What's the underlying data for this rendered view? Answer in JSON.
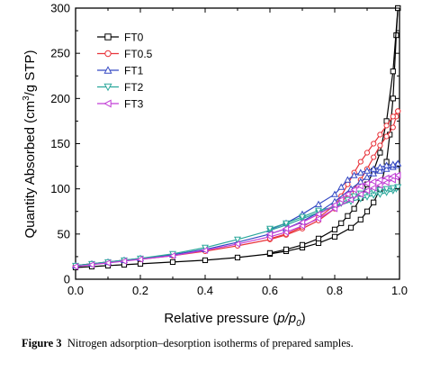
{
  "caption": {
    "label": "Figure 3",
    "text": "Nitrogen adsorption–desorption isotherms of prepared samples."
  },
  "chart_data": {
    "type": "line",
    "xlabel_main": "Relative pressure (",
    "xlabel_italic": "p/p",
    "xlabel_sub": "0",
    "xlabel_end": ")",
    "ylabel_pre": "Quantity Absorbed (cm",
    "ylabel_sup": "3",
    "ylabel_post": "/g STP)",
    "xlim": [
      0.0,
      1.0
    ],
    "ylim": [
      0,
      300
    ],
    "xticks": [
      "0.0",
      "0.2",
      "0.4",
      "0.6",
      "0.8",
      "1.0"
    ],
    "yticks": [
      "0",
      "50",
      "100",
      "150",
      "200",
      "250",
      "300"
    ],
    "legend_position": "top-left",
    "series": [
      {
        "name": "FT0",
        "color": "#000000",
        "marker": "square",
        "adsorption": [
          [
            0.0,
            13
          ],
          [
            0.05,
            14
          ],
          [
            0.1,
            15
          ],
          [
            0.15,
            16
          ],
          [
            0.2,
            17
          ],
          [
            0.3,
            19
          ],
          [
            0.4,
            21
          ],
          [
            0.5,
            24
          ],
          [
            0.6,
            28
          ],
          [
            0.65,
            31
          ],
          [
            0.7,
            35
          ],
          [
            0.75,
            40
          ],
          [
            0.8,
            47
          ],
          [
            0.85,
            57
          ],
          [
            0.88,
            66
          ],
          [
            0.9,
            75
          ],
          [
            0.92,
            85
          ],
          [
            0.94,
            100
          ],
          [
            0.96,
            130
          ],
          [
            0.97,
            160
          ],
          [
            0.98,
            200
          ],
          [
            0.99,
            270
          ],
          [
            0.995,
            300
          ]
        ],
        "desorption": [
          [
            0.995,
            300
          ],
          [
            0.98,
            230
          ],
          [
            0.96,
            175
          ],
          [
            0.94,
            140
          ],
          [
            0.92,
            120
          ],
          [
            0.9,
            105
          ],
          [
            0.88,
            90
          ],
          [
            0.86,
            78
          ],
          [
            0.84,
            70
          ],
          [
            0.82,
            62
          ],
          [
            0.8,
            55
          ],
          [
            0.75,
            45
          ],
          [
            0.7,
            38
          ],
          [
            0.65,
            33
          ],
          [
            0.6,
            29
          ]
        ]
      },
      {
        "name": "FT0.5",
        "color": "#e8333a",
        "marker": "circle",
        "adsorption": [
          [
            0.0,
            15
          ],
          [
            0.05,
            17
          ],
          [
            0.1,
            19
          ],
          [
            0.15,
            21
          ],
          [
            0.2,
            22
          ],
          [
            0.3,
            26
          ],
          [
            0.4,
            31
          ],
          [
            0.5,
            37
          ],
          [
            0.6,
            44
          ],
          [
            0.65,
            49
          ],
          [
            0.7,
            56
          ],
          [
            0.75,
            65
          ],
          [
            0.8,
            78
          ],
          [
            0.85,
            96
          ],
          [
            0.88,
            110
          ],
          [
            0.9,
            122
          ],
          [
            0.92,
            135
          ],
          [
            0.94,
            148
          ],
          [
            0.96,
            158
          ],
          [
            0.98,
            168
          ],
          [
            0.99,
            180
          ],
          [
            0.995,
            186
          ]
        ],
        "desorption": [
          [
            0.995,
            186
          ],
          [
            0.98,
            180
          ],
          [
            0.96,
            170
          ],
          [
            0.94,
            160
          ],
          [
            0.92,
            150
          ],
          [
            0.9,
            140
          ],
          [
            0.88,
            130
          ],
          [
            0.86,
            118
          ],
          [
            0.84,
            105
          ],
          [
            0.82,
            92
          ],
          [
            0.8,
            82
          ],
          [
            0.75,
            68
          ],
          [
            0.7,
            58
          ],
          [
            0.65,
            50
          ],
          [
            0.6,
            45
          ]
        ]
      },
      {
        "name": "FT1",
        "color": "#3549c4",
        "marker": "triangle-up",
        "adsorption": [
          [
            0.0,
            15
          ],
          [
            0.05,
            17
          ],
          [
            0.1,
            19
          ],
          [
            0.15,
            21
          ],
          [
            0.2,
            23
          ],
          [
            0.3,
            27
          ],
          [
            0.4,
            33
          ],
          [
            0.5,
            41
          ],
          [
            0.6,
            50
          ],
          [
            0.65,
            56
          ],
          [
            0.7,
            64
          ],
          [
            0.75,
            74
          ],
          [
            0.8,
            86
          ],
          [
            0.85,
            100
          ],
          [
            0.88,
            108
          ],
          [
            0.9,
            113
          ],
          [
            0.92,
            117
          ],
          [
            0.94,
            120
          ],
          [
            0.96,
            122
          ],
          [
            0.98,
            124
          ],
          [
            0.99,
            126
          ],
          [
            0.995,
            128
          ]
        ],
        "desorption": [
          [
            0.995,
            128
          ],
          [
            0.98,
            127
          ],
          [
            0.96,
            126
          ],
          [
            0.94,
            124
          ],
          [
            0.92,
            122
          ],
          [
            0.9,
            120
          ],
          [
            0.88,
            118
          ],
          [
            0.86,
            115
          ],
          [
            0.84,
            110
          ],
          [
            0.82,
            102
          ],
          [
            0.8,
            94
          ],
          [
            0.75,
            83
          ],
          [
            0.7,
            72
          ],
          [
            0.65,
            62
          ],
          [
            0.6,
            55
          ]
        ]
      },
      {
        "name": "FT2",
        "color": "#2aa79b",
        "marker": "triangle-down",
        "adsorption": [
          [
            0.0,
            15
          ],
          [
            0.05,
            17
          ],
          [
            0.1,
            19
          ],
          [
            0.15,
            21
          ],
          [
            0.2,
            23
          ],
          [
            0.3,
            28
          ],
          [
            0.4,
            35
          ],
          [
            0.5,
            44
          ],
          [
            0.6,
            54
          ],
          [
            0.65,
            60
          ],
          [
            0.7,
            67
          ],
          [
            0.75,
            74
          ],
          [
            0.8,
            80
          ],
          [
            0.85,
            86
          ],
          [
            0.88,
            89
          ],
          [
            0.9,
            91
          ],
          [
            0.92,
            93
          ],
          [
            0.94,
            94
          ],
          [
            0.96,
            96
          ],
          [
            0.98,
            98
          ],
          [
            0.99,
            100
          ],
          [
            0.995,
            102
          ]
        ],
        "desorption": [
          [
            0.995,
            102
          ],
          [
            0.98,
            101
          ],
          [
            0.96,
            100
          ],
          [
            0.94,
            99
          ],
          [
            0.92,
            98
          ],
          [
            0.9,
            97
          ],
          [
            0.88,
            95
          ],
          [
            0.86,
            92
          ],
          [
            0.84,
            88
          ],
          [
            0.82,
            84
          ],
          [
            0.8,
            80
          ],
          [
            0.75,
            76
          ],
          [
            0.7,
            69
          ],
          [
            0.65,
            62
          ],
          [
            0.6,
            56
          ]
        ]
      },
      {
        "name": "FT3",
        "color": "#c23fd6",
        "marker": "triangle-left",
        "adsorption": [
          [
            0.0,
            14
          ],
          [
            0.05,
            16
          ],
          [
            0.1,
            18
          ],
          [
            0.15,
            20
          ],
          [
            0.2,
            22
          ],
          [
            0.3,
            26
          ],
          [
            0.4,
            32
          ],
          [
            0.5,
            39
          ],
          [
            0.6,
            47
          ],
          [
            0.65,
            52
          ],
          [
            0.7,
            59
          ],
          [
            0.75,
            67
          ],
          [
            0.8,
            78
          ],
          [
            0.85,
            88
          ],
          [
            0.88,
            94
          ],
          [
            0.9,
            98
          ],
          [
            0.92,
            101
          ],
          [
            0.94,
            104
          ],
          [
            0.96,
            107
          ],
          [
            0.98,
            110
          ],
          [
            0.99,
            113
          ],
          [
            0.995,
            115
          ]
        ],
        "desorption": [
          [
            0.995,
            115
          ],
          [
            0.98,
            114
          ],
          [
            0.96,
            112
          ],
          [
            0.94,
            110
          ],
          [
            0.92,
            108
          ],
          [
            0.9,
            106
          ],
          [
            0.88,
            103
          ],
          [
            0.86,
            99
          ],
          [
            0.84,
            94
          ],
          [
            0.82,
            88
          ],
          [
            0.8,
            82
          ],
          [
            0.75,
            72
          ],
          [
            0.7,
            63
          ],
          [
            0.65,
            56
          ],
          [
            0.6,
            50
          ]
        ]
      }
    ]
  }
}
